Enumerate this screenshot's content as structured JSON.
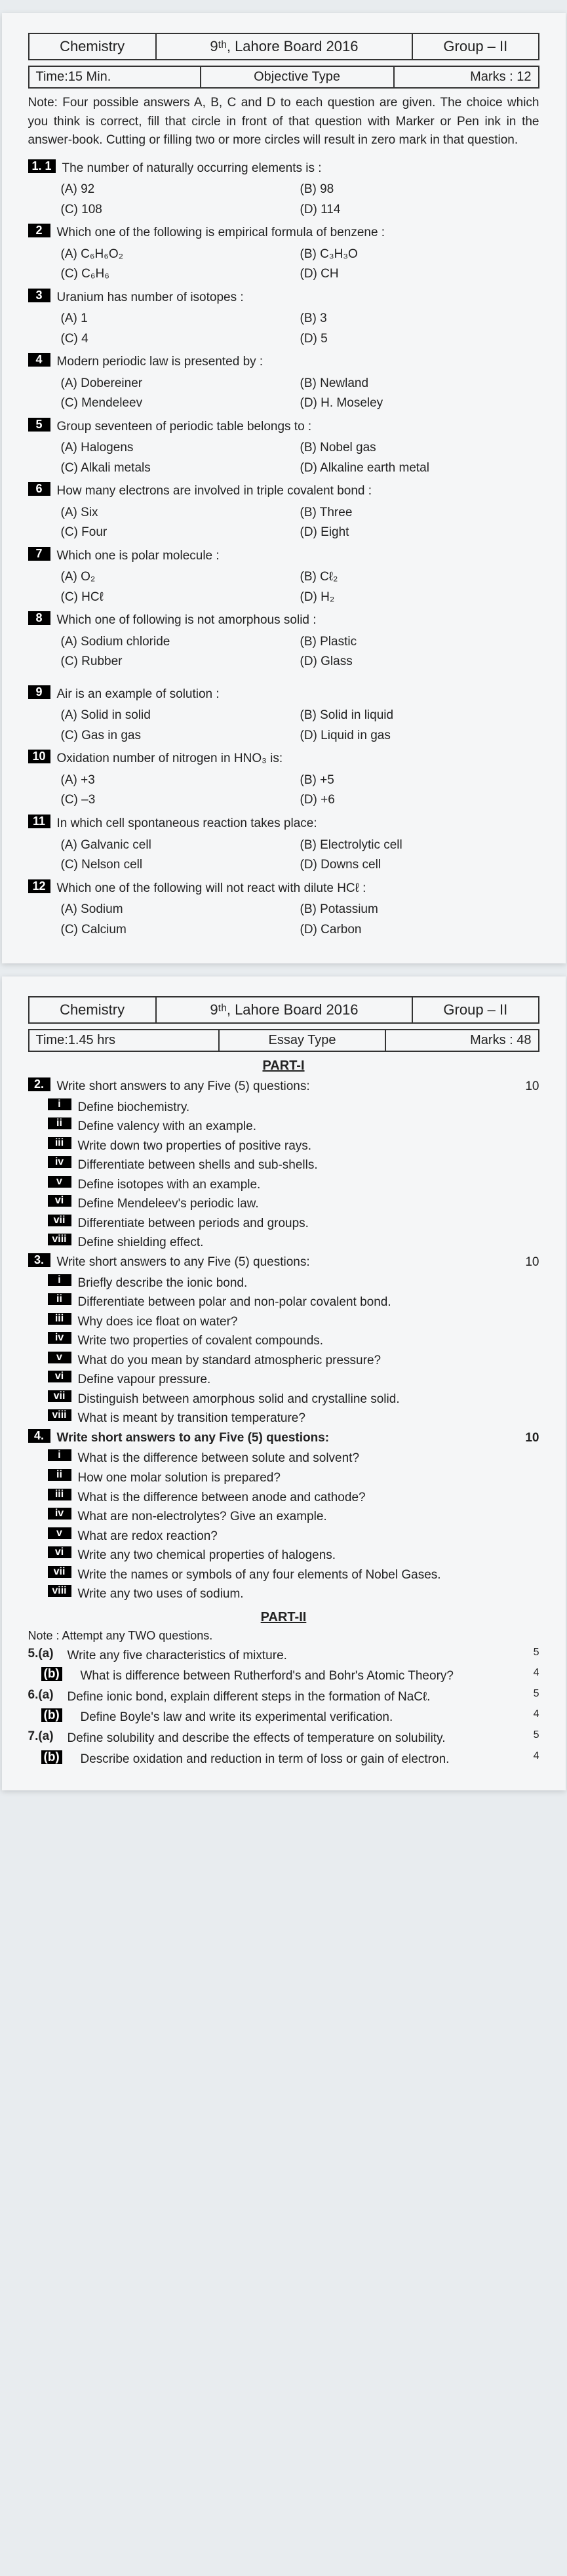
{
  "paper1": {
    "header": {
      "subject": "Chemistry",
      "board": "9ᵗʰ, Lahore Board 2016",
      "group": "Group – II"
    },
    "sub": {
      "time": "Time:15 Min.",
      "type": "Objective Type",
      "marks": "Marks : 12"
    },
    "note": "Note: Four possible answers A, B, C and D to each question are given. The choice which you think is correct, fill that circle in front of that question with Marker or Pen ink in the answer-book. Cutting or filling two or more circles will result in zero mark in that question.",
    "q1": {
      "pre": "1. 1",
      "text": "The number of naturally occurring elements is :",
      "a": "(A) 92",
      "b": "(B) 98",
      "c": "(C) 108",
      "d": "(D) 114"
    },
    "q2": {
      "text": "Which one of the following is empirical formula of benzene :",
      "a": "(A) C₆H₆O₂",
      "b": "(B) C₃H₃O",
      "c": "(C) C₆H₆",
      "d": "(D) CH"
    },
    "q3": {
      "text": "Uranium has number of isotopes :",
      "a": "(A) 1",
      "b": "(B) 3",
      "c": "(C) 4",
      "d": "(D) 5"
    },
    "q4": {
      "text": "Modern periodic law is presented by :",
      "a": "(A) Dobereiner",
      "b": "(B) Newland",
      "c": "(C) Mendeleev",
      "d": "(D) H. Moseley"
    },
    "q5": {
      "text": "Group seventeen of periodic table belongs to :",
      "a": "(A) Halogens",
      "b": "(B) Nobel gas",
      "c": "(C) Alkali metals",
      "d": "(D) Alkaline earth metal"
    },
    "q6": {
      "text": "How many electrons are involved in triple covalent bond :",
      "a": "(A) Six",
      "b": "(B) Three",
      "c": "(C) Four",
      "d": "(D) Eight"
    },
    "q7": {
      "text": "Which one is polar molecule :",
      "a": "(A) O₂",
      "b": "(B) Cℓ₂",
      "c": "(C) HCℓ",
      "d": "(D) H₂"
    },
    "q8": {
      "text": "Which one of following is not amorphous solid :",
      "a": "(A) Sodium chloride",
      "b": "(B) Plastic",
      "c": "(C) Rubber",
      "d": "(D) Glass"
    },
    "q9": {
      "text": "Air is an example of solution :",
      "a": "(A) Solid in solid",
      "b": "(B) Solid in liquid",
      "c": "(C) Gas in gas",
      "d": "(D) Liquid in gas"
    },
    "q10": {
      "text": "Oxidation number of nitrogen in HNO₃ is:",
      "a": "(A) +3",
      "b": "(B) +5",
      "c": "(C) –3",
      "d": "(D) +6"
    },
    "q11": {
      "text": "In which cell spontaneous reaction takes place:",
      "a": "(A) Galvanic cell",
      "b": "(B) Electrolytic cell",
      "c": "(C) Nelson cell",
      "d": "(D) Downs cell"
    },
    "q12": {
      "text": "Which one of the following will not react with dilute HCℓ :",
      "a": "(A) Sodium",
      "b": "(B) Potassium",
      "c": "(C) Calcium",
      "d": "(D) Carbon"
    }
  },
  "paper2": {
    "header": {
      "subject": "Chemistry",
      "board": "9ᵗʰ, Lahore Board 2016",
      "group": "Group – II"
    },
    "sub": {
      "time": "Time:1.45 hrs",
      "type": "Essay Type",
      "marks": "Marks : 48"
    },
    "part1": "PART-I",
    "q2": {
      "text": "Write short answers to any Five (5) questions:",
      "marks": "10",
      "items": [
        "Define biochemistry.",
        "Define valency with an example.",
        "Write down two properties of positive rays.",
        "Differentiate between shells and sub-shells.",
        "Define isotopes with an example.",
        "Define Mendeleev's periodic law.",
        "Differentiate between periods and groups.",
        "Define shielding effect."
      ]
    },
    "q3": {
      "text": "Write short answers to any Five (5) questions:",
      "marks": "10",
      "items": [
        "Briefly describe the ionic bond.",
        "Differentiate between polar and non-polar covalent bond.",
        "Why does ice float on water?",
        "Write two properties of covalent compounds.",
        "What do you mean by standard atmospheric pressure?",
        "Define vapour pressure.",
        "Distinguish between amorphous solid and crystalline solid.",
        "What is meant by transition temperature?"
      ]
    },
    "q4": {
      "text": "Write short answers to any Five (5) questions:",
      "marks": "10",
      "items": [
        "What is the difference between solute and solvent?",
        "How one molar solution is prepared?",
        "What is the difference between anode and cathode?",
        "What are non-electrolytes? Give an example.",
        "What are redox reaction?",
        "Write any two chemical properties of halogens.",
        "Write the names or symbols of any four elements of Nobel Gases.",
        "Write any two uses of sodium."
      ]
    },
    "part2": "PART-II",
    "long_note": "Note : Attempt any TWO questions.",
    "q5a": {
      "label": "5.(a)",
      "text": "Write any five characteristics of mixture.",
      "mark": "5"
    },
    "q5b": {
      "label": "(b)",
      "text": "What is difference between Rutherford's and Bohr's Atomic Theory?",
      "mark": "4"
    },
    "q6a": {
      "label": "6.(a)",
      "text": "Define ionic bond, explain different steps in the formation of NaCℓ.",
      "mark": "5"
    },
    "q6b": {
      "label": "(b)",
      "text": "Define Boyle's law and write its experimental verification.",
      "mark": "4"
    },
    "q7a": {
      "label": "7.(a)",
      "text": "Define solubility and describe the effects of temperature on solubility.",
      "mark": "5"
    },
    "q7b": {
      "label": "(b)",
      "text": "Describe oxidation and reduction in term of loss or gain of electron.",
      "mark": "4"
    }
  },
  "romans": [
    "i",
    "ii",
    "iii",
    "iv",
    "v",
    "vi",
    "vii",
    "viii"
  ]
}
